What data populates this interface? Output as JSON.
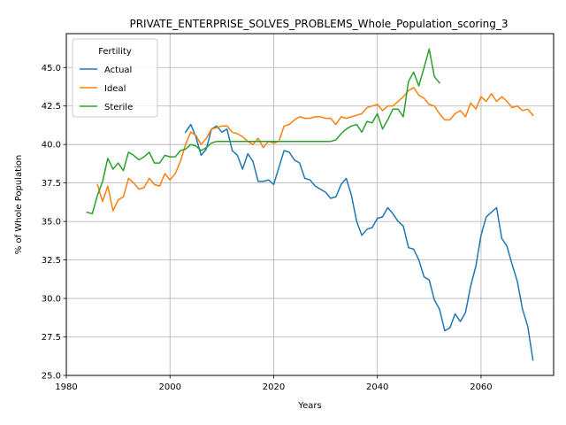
{
  "chart_data": {
    "type": "line",
    "title": "PRIVATE_ENTERPRISE_SOLVES_PROBLEMS_Whole_Population_scoring_3",
    "xlabel": "Years",
    "ylabel": "% of Whole Population",
    "xlim": [
      1980,
      2074
    ],
    "ylim": [
      25.0,
      47.2
    ],
    "xticks": [
      1980,
      2000,
      2020,
      2040,
      2060
    ],
    "xtick_labels": [
      "1980",
      "2000",
      "2020",
      "2040",
      "2060"
    ],
    "yticks": [
      25.0,
      27.5,
      30.0,
      32.5,
      35.0,
      37.5,
      40.0,
      42.5,
      45.0
    ],
    "ytick_labels": [
      "25.0",
      "27.5",
      "30.0",
      "32.5",
      "35.0",
      "37.5",
      "40.0",
      "42.5",
      "45.0"
    ],
    "grid": true,
    "legend": {
      "title": "Fertility",
      "placement": "top-left"
    },
    "series": [
      {
        "name": "Actual",
        "color": "#1f77b4",
        "x": [
          2003,
          2004,
          2005,
          2006,
          2007,
          2008,
          2009,
          2010,
          2011,
          2012,
          2013,
          2014,
          2015,
          2016,
          2017,
          2018,
          2019,
          2020,
          2021,
          2022,
          2023,
          2024,
          2025,
          2026,
          2027,
          2028,
          2029,
          2030,
          2031,
          2032,
          2033,
          2034,
          2035,
          2036,
          2037,
          2038,
          2039,
          2040,
          2041,
          2042,
          2043,
          2044,
          2045,
          2046,
          2047,
          2048,
          2049,
          2050,
          2051,
          2052,
          2053,
          2054,
          2055,
          2056,
          2057,
          2058,
          2059,
          2060,
          2061,
          2062,
          2063,
          2064,
          2065,
          2066,
          2067,
          2068,
          2069,
          2070
        ],
        "values": [
          40.8,
          41.3,
          40.5,
          39.3,
          39.7,
          41.0,
          41.2,
          40.8,
          41.0,
          39.6,
          39.3,
          38.4,
          39.4,
          38.9,
          37.6,
          37.6,
          37.7,
          37.4,
          38.5,
          39.6,
          39.5,
          39.0,
          38.8,
          37.8,
          37.7,
          37.3,
          37.1,
          36.9,
          36.5,
          36.6,
          37.4,
          37.8,
          36.7,
          35.0,
          34.1,
          34.5,
          34.6,
          35.2,
          35.3,
          35.9,
          35.5,
          35.0,
          34.7,
          33.3,
          33.2,
          32.5,
          31.4,
          31.2,
          29.9,
          29.3,
          27.9,
          28.1,
          29.0,
          28.5,
          29.1,
          30.8,
          32.1,
          34.1,
          35.3,
          35.6,
          35.9,
          33.9,
          33.4,
          32.2,
          31.1,
          29.3,
          28.2,
          26.0
        ]
      },
      {
        "name": "Ideal",
        "color": "#ff7f0e",
        "x": [
          1986,
          1987,
          1988,
          1989,
          1990,
          1991,
          1992,
          1993,
          1994,
          1995,
          1996,
          1997,
          1998,
          1999,
          2000,
          2001,
          2002,
          2003,
          2004,
          2005,
          2006,
          2007,
          2008,
          2009,
          2010,
          2011,
          2012,
          2013,
          2014,
          2015,
          2016,
          2017,
          2018,
          2019,
          2020,
          2021,
          2022,
          2023,
          2024,
          2025,
          2026,
          2027,
          2028,
          2029,
          2030,
          2031,
          2032,
          2033,
          2034,
          2035,
          2036,
          2037,
          2038,
          2039,
          2040,
          2041,
          2042,
          2043,
          2044,
          2045,
          2046,
          2047,
          2048,
          2049,
          2050,
          2051,
          2052,
          2053,
          2054,
          2055,
          2056,
          2057,
          2058,
          2059,
          2060,
          2061,
          2062,
          2063,
          2064,
          2065,
          2066,
          2067,
          2068,
          2069,
          2070
        ],
        "values": [
          37.4,
          36.3,
          37.3,
          35.7,
          36.4,
          36.6,
          37.8,
          37.5,
          37.1,
          37.2,
          37.8,
          37.4,
          37.3,
          38.1,
          37.7,
          38.1,
          38.9,
          40.0,
          40.8,
          40.6,
          40.0,
          40.4,
          41.0,
          41.1,
          41.2,
          41.2,
          40.8,
          40.7,
          40.5,
          40.2,
          40.0,
          40.4,
          39.8,
          40.2,
          40.1,
          40.2,
          41.2,
          41.3,
          41.6,
          41.8,
          41.7,
          41.7,
          41.8,
          41.8,
          41.7,
          41.7,
          41.3,
          41.8,
          41.7,
          41.8,
          41.9,
          42.0,
          42.4,
          42.5,
          42.6,
          42.2,
          42.5,
          42.5,
          42.8,
          43.1,
          43.5,
          43.7,
          43.2,
          43.0,
          42.6,
          42.5,
          42.0,
          41.6,
          41.6,
          42.0,
          42.2,
          41.8,
          42.7,
          42.3,
          43.1,
          42.8,
          43.3,
          42.8,
          43.1,
          42.8,
          42.4,
          42.5,
          42.2,
          42.3,
          41.9
        ]
      },
      {
        "name": "Sterile",
        "color": "#2ca02c",
        "x": [
          1984,
          1985,
          1986,
          1987,
          1988,
          1989,
          1990,
          1991,
          1992,
          1993,
          1994,
          1995,
          1996,
          1997,
          1998,
          1999,
          2000,
          2001,
          2002,
          2003,
          2004,
          2005,
          2006,
          2007,
          2008,
          2009,
          2010,
          2011,
          2012,
          2013,
          2014,
          2015,
          2016,
          2017,
          2018,
          2019,
          2020,
          2021,
          2022,
          2023,
          2024,
          2025,
          2026,
          2027,
          2028,
          2029,
          2030,
          2031,
          2032,
          2033,
          2034,
          2035,
          2036,
          2037,
          2038,
          2039,
          2040,
          2041,
          2042,
          2043,
          2044,
          2045,
          2046,
          2047,
          2048,
          2049,
          2050,
          2051,
          2052
        ],
        "values": [
          35.6,
          35.5,
          36.7,
          37.6,
          39.1,
          38.4,
          38.8,
          38.3,
          39.5,
          39.3,
          39.0,
          39.2,
          39.5,
          38.8,
          38.8,
          39.3,
          39.2,
          39.2,
          39.6,
          39.7,
          40.0,
          39.9,
          39.6,
          39.8,
          40.1,
          40.2,
          40.2,
          40.2,
          40.2,
          40.2,
          40.2,
          40.2,
          40.2,
          40.2,
          40.2,
          40.2,
          40.2,
          40.2,
          40.2,
          40.2,
          40.2,
          40.2,
          40.2,
          40.2,
          40.2,
          40.2,
          40.2,
          40.2,
          40.3,
          40.7,
          41.0,
          41.2,
          41.3,
          40.8,
          41.5,
          41.4,
          42.0,
          41.0,
          41.6,
          42.3,
          42.3,
          41.8,
          44.1,
          44.7,
          43.8,
          45.0,
          46.2,
          44.4,
          44.0
        ]
      }
    ]
  }
}
